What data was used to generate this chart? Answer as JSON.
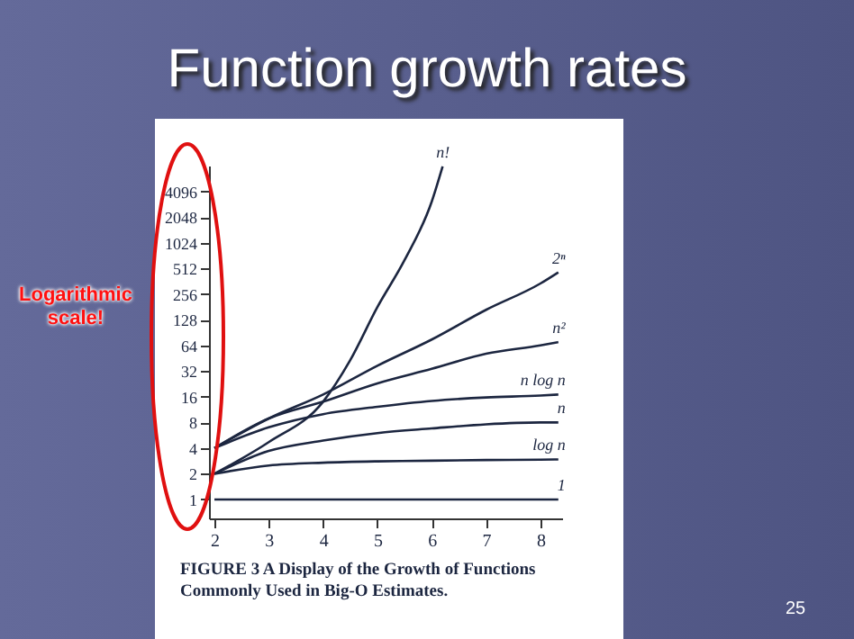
{
  "chart_data": {
    "type": "line",
    "title": "Function growth rates",
    "x": [
      2,
      3,
      4,
      5,
      6,
      7,
      8,
      8.33
    ],
    "series": [
      {
        "name": "n!",
        "color": "#1c2640",
        "x": [
          2,
          3,
          4,
          4.5,
          5,
          5.5,
          6,
          6.2
        ],
        "values": [
          2,
          4.7,
          14,
          43,
          180,
          640,
          3100,
          8000
        ]
      },
      {
        "name": "2ⁿ",
        "color": "#1c2640",
        "values": [
          4,
          8.9,
          17,
          37,
          75,
          167,
          340,
          460
        ]
      },
      {
        "name": "n²",
        "color": "#1c2640",
        "values": [
          4,
          8.9,
          14,
          23,
          34,
          51,
          64,
          70
        ]
      },
      {
        "name": "n log n",
        "color": "#1c2640",
        "values": [
          4,
          7,
          10,
          12.2,
          14.3,
          15.7,
          16.5,
          17
        ]
      },
      {
        "name": "n",
        "color": "#1c2640",
        "values": [
          2,
          3.7,
          4.9,
          6,
          6.8,
          7.6,
          8,
          8
        ]
      },
      {
        "name": "log n",
        "color": "#1c2640",
        "values": [
          2,
          2.5,
          2.7,
          2.8,
          2.85,
          2.9,
          2.93,
          2.95
        ]
      },
      {
        "name": "1",
        "color": "#1c2640",
        "values": [
          1,
          1,
          1,
          1,
          1,
          1,
          1,
          1
        ]
      }
    ],
    "xlim": [
      1.9,
      8.4
    ],
    "xticks": [
      2,
      3,
      4,
      5,
      6,
      7,
      8
    ],
    "ylim": [
      0.6,
      8192
    ],
    "yticks": [
      1,
      2,
      4,
      8,
      16,
      32,
      64,
      128,
      256,
      512,
      1024,
      2048,
      4096
    ],
    "log": "y",
    "grid": false,
    "legend": false,
    "annotations": [
      "Logarithmic scale!",
      "FIGURE 3    A Display of the Growth of Functions Commonly Used in Big-O Estimates.",
      "25"
    ]
  }
}
